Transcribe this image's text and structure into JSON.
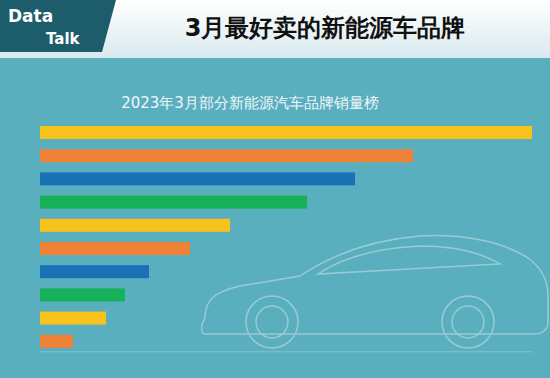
{
  "chart_data": {
    "type": "bar",
    "orientation": "horizontal",
    "title": "3月最好卖的新能源车品牌",
    "subtitle": "2023年3月部分新能源汽车品牌销量榜",
    "annotations": [
      "Data",
      "Talk"
    ],
    "categories": [
      null,
      null,
      null,
      null,
      null,
      null,
      null,
      null,
      null,
      null
    ],
    "values": [
      492,
      373,
      315,
      267,
      190,
      150,
      109,
      85,
      66,
      33
    ],
    "colors": [
      "#f8c21c",
      "#ef8236",
      "#1a72b6",
      "#17b159",
      "#f8c21c",
      "#ef8236",
      "#1a72b6",
      "#17b159",
      "#f8c21c",
      "#ef8236"
    ],
    "xlim": [
      0,
      492
    ],
    "grid": false,
    "tick_labels": false
  }
}
